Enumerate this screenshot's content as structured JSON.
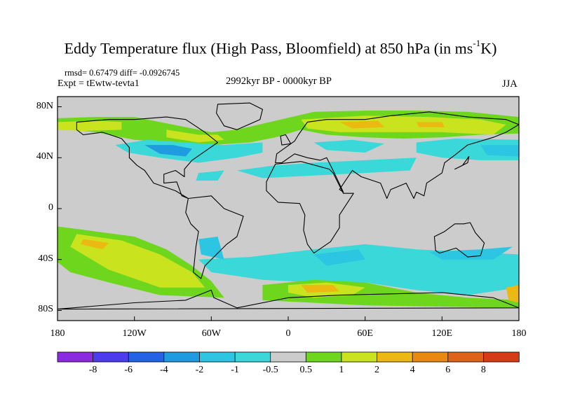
{
  "title": {
    "main": "Eddy Temperature flux (High Pass, Bloomfield) at 850 hPa (in ms",
    "sup": "-1",
    "end": "K)"
  },
  "stats": "rmsd= 0.67479  diff= -0.0926745",
  "expt": "Expt = tEwtw-tevta1",
  "period": "2992kyr BP - 0000kyr BP",
  "season": "JJA",
  "axes": {
    "x_ticks": [
      {
        "lon": -180,
        "label": "180"
      },
      {
        "lon": -120,
        "label": "120W"
      },
      {
        "lon": -60,
        "label": "60W"
      },
      {
        "lon": 0,
        "label": "0"
      },
      {
        "lon": 60,
        "label": "60E"
      },
      {
        "lon": 120,
        "label": "120E"
      },
      {
        "lon": 180,
        "label": "180"
      }
    ],
    "y_ticks": [
      {
        "lat": 80,
        "label": "80N"
      },
      {
        "lat": 40,
        "label": "40N"
      },
      {
        "lat": 0,
        "label": "0"
      },
      {
        "lat": -40,
        "label": "40S"
      },
      {
        "lat": -80,
        "label": "80S"
      }
    ],
    "lon_range": [
      -180,
      180
    ],
    "lat_range": [
      -90,
      90
    ]
  },
  "colorbar": {
    "levels": [
      "-8",
      "-6",
      "-4",
      "-2",
      "-1",
      "-0.5",
      "0.5",
      "1",
      "2",
      "4",
      "6",
      "8"
    ],
    "colors": [
      "#8a2be2",
      "#4d3bf0",
      "#2563e6",
      "#1f9bdf",
      "#2cc6e3",
      "#3ad8d8",
      "#cccccc",
      "#6fd61e",
      "#c9e41f",
      "#ecb812",
      "#e88a0e",
      "#e0621a",
      "#d63a16"
    ]
  },
  "chart_data": {
    "type": "filled-contour-map",
    "title": "Eddy Temperature flux (High Pass, Bloomfield) at 850 hPa (in ms-1K)",
    "variable": "eddy temperature flux difference",
    "units": "m s-1 K",
    "projection": "cylindrical equidistant",
    "lon_range": [
      -180,
      180
    ],
    "lat_range": [
      -90,
      90
    ],
    "contour_levels": [
      -8,
      -6,
      -4,
      -2,
      -1,
      -0.5,
      0.5,
      1,
      2,
      4,
      6,
      8
    ],
    "fields": [
      {
        "name": "NH high-latitude positive band",
        "lon": [
          -180,
          180
        ],
        "lat": [
          55,
          75
        ],
        "class": 7
      },
      {
        "name": "Siberia positive maximum",
        "lon": [
          50,
          140
        ],
        "lat": [
          58,
          72
        ],
        "class": 9
      },
      {
        "name": "North America storm track negative",
        "lon": [
          -110,
          -20
        ],
        "lat": [
          32,
          52
        ],
        "class": 4
      },
      {
        "name": "North Pacific negative",
        "lon": [
          110,
          180
        ],
        "lat": [
          38,
          55
        ],
        "class": 4
      },
      {
        "name": "Central Asia negative",
        "lon": [
          10,
          110
        ],
        "lat": [
          30,
          50
        ],
        "class": 5
      },
      {
        "name": "South Pacific positive band",
        "lon": [
          -170,
          -60
        ],
        "lat": [
          -65,
          -20
        ],
        "class": 8
      },
      {
        "name": "South Atlantic / Indian negative",
        "lon": [
          -70,
          180
        ],
        "lat": [
          -60,
          -25
        ],
        "class": 4
      },
      {
        "name": "Southern Ocean positive (Weddell)",
        "lon": [
          -10,
          70
        ],
        "lat": [
          -75,
          -60
        ],
        "class": 9
      }
    ]
  }
}
